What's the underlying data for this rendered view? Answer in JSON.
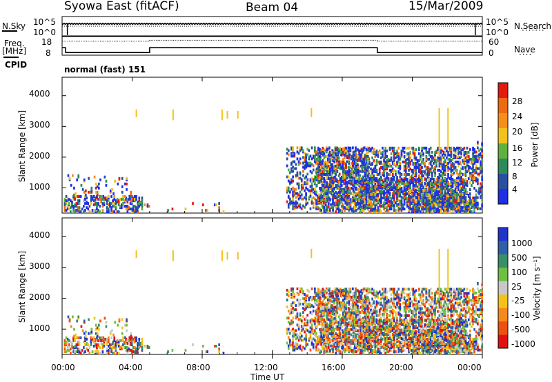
{
  "header": {
    "station": "Syowa East (fitACF)",
    "beam": "Beam 04",
    "date": "15/Mar/2009"
  },
  "top_panel": {
    "left_label": "N.Sky",
    "right_label": "N.Search",
    "left_ticks": [
      "10^5",
      "10^0"
    ],
    "right_ticks": [
      "10^5",
      "10^0"
    ],
    "right_line_style": "dotted"
  },
  "freq_panel": {
    "left_label_1": "Freq.",
    "left_label_2": "[MHz]",
    "left_ticks": [
      "18",
      "8"
    ],
    "right_label": "Nave",
    "right_ticks": [
      "60",
      "0"
    ],
    "right_line_style": "dotted"
  },
  "cpid": {
    "label": "CPID",
    "value": "normal (fast) 151"
  },
  "x_axis": {
    "ticks": [
      "00:00",
      "04:00",
      "08:00",
      "12:00",
      "16:00",
      "20:00",
      "00:00"
    ],
    "label": "Time UT"
  },
  "y_axis": {
    "label": "Slant Range [km]",
    "ticks": [
      "1000",
      "2000",
      "3000",
      "4000"
    ]
  },
  "power_colorbar": {
    "title": "Power [dB]",
    "ticks": [
      "4",
      "8",
      "12",
      "16",
      "20",
      "24",
      "28"
    ],
    "colors": [
      "#1f2fe6",
      "#2a4fa0",
      "#2f8a5a",
      "#5fb03f",
      "#f2c21a",
      "#f58f1a",
      "#ee6a10",
      "#e41a0e"
    ]
  },
  "velocity_colorbar": {
    "title": "Velocity [m s⁻¹]",
    "ticks": [
      "1000",
      "500",
      "100",
      "25",
      "-25",
      "-100",
      "-500",
      "-1000"
    ],
    "colors": [
      "#2233cc",
      "#2f5fa8",
      "#3a8f6a",
      "#6ec040",
      "#c8c8c8",
      "#f3c21a",
      "#f58a1a",
      "#ee5010",
      "#e01010"
    ]
  },
  "chart_data": [
    {
      "type": "line",
      "panel": "N.Sky / N.Search",
      "ylabel": "N.Sky",
      "y2label": "N.Search",
      "series": [
        {
          "name": "N.Sky",
          "x_hours": [
            0,
            0.3,
            0.35,
            12,
            23.6,
            23.7,
            24
          ],
          "values": [
            "10^4.5",
            "10^0",
            "10^4.5",
            "10^4.5",
            "10^4.6",
            "10^0",
            "10^4.5"
          ]
        }
      ]
    },
    {
      "type": "line",
      "panel": "Freq / Nave",
      "ylabel": "Freq. [MHz]",
      "ylim": [
        8,
        18
      ],
      "y2label": "Nave",
      "y2lim": [
        0,
        60
      ],
      "series": [
        {
          "name": "Freq.",
          "x_hours": [
            0,
            0.2,
            0.2,
            5.0,
            5.0,
            18.0,
            18.0,
            24
          ],
          "values": [
            12,
            12,
            9.4,
            9.4,
            12,
            12,
            9.4,
            9.4
          ]
        },
        {
          "name": "Nave",
          "x_hours": [
            0,
            5.0,
            5.0,
            18.0,
            18.0,
            24
          ],
          "values": [
            45,
            45,
            48,
            48,
            45,
            45
          ]
        }
      ]
    },
    {
      "type": "heatmap",
      "panel": "Power",
      "xlabel": "Time UT",
      "ylabel": "Slant Range [km]",
      "xlim_hours": [
        0,
        24
      ],
      "ylim": [
        180,
        4600
      ],
      "colorbar": "Power [dB]",
      "clim": [
        0,
        32
      ]
    },
    {
      "type": "heatmap",
      "panel": "Velocity",
      "xlabel": "Time UT",
      "ylabel": "Slant Range [km]",
      "xlim_hours": [
        0,
        24
      ],
      "ylim": [
        180,
        4600
      ],
      "colorbar": "Velocity [m s⁻¹]",
      "clim": [
        -1000,
        1000
      ]
    }
  ]
}
